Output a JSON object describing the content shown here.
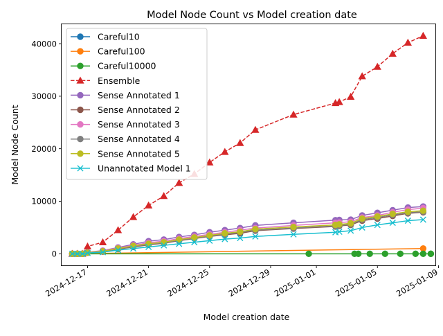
{
  "chart_data": {
    "type": "line",
    "title": "Model Node Count vs Model creation date",
    "xlabel": "Model creation date",
    "ylabel": "Model Node Count",
    "xlim": [
      "2024-12-15T07:12",
      "2025-01-08T19:12"
    ],
    "ylim": [
      -2200,
      43700
    ],
    "x_ticks": [
      "2024-12-17",
      "2024-12-21",
      "2024-12-25",
      "2024-12-29",
      "2025-01-01",
      "2025-01-05",
      "2025-01-09"
    ],
    "y_ticks": [
      0,
      10000,
      20000,
      30000,
      40000
    ],
    "legend_position": "top-left",
    "grid": false,
    "series": [
      {
        "name": "Careful10",
        "color": "#1f77b4",
        "marker": "circle",
        "dash": "solid",
        "points": [
          [
            "2024-12-16T00:00",
            0
          ]
        ]
      },
      {
        "name": "Careful100",
        "color": "#ff7f0e",
        "marker": "circle",
        "dash": "solid",
        "points": [
          [
            "2024-12-16T00:00",
            0
          ],
          [
            "2025-01-08T00:00",
            1000
          ]
        ]
      },
      {
        "name": "Careful10000",
        "color": "#2ca02c",
        "marker": "circle",
        "dash": "solid",
        "points": [
          [
            "2024-12-16T00:00",
            0
          ],
          [
            "2024-12-16T08:00",
            0
          ],
          [
            "2024-12-16T16:00",
            0
          ],
          [
            "2024-12-31T12:00",
            0
          ],
          [
            "2025-01-03T12:00",
            0
          ],
          [
            "2025-01-03T18:00",
            0
          ],
          [
            "2025-01-04T12:00",
            0
          ],
          [
            "2025-01-05T12:00",
            0
          ],
          [
            "2025-01-06T12:00",
            0
          ],
          [
            "2025-01-07T12:00",
            0
          ],
          [
            "2025-01-08T12:00",
            0
          ],
          [
            "2025-01-08T00:00",
            0
          ],
          [
            "2025-01-08T12:00",
            0
          ]
        ]
      },
      {
        "name": "Ensemble",
        "color": "#d62728",
        "marker": "triangle",
        "dash": "dashed",
        "points": [
          [
            "2024-12-16T00:00",
            0
          ],
          [
            "2024-12-16T08:00",
            0
          ],
          [
            "2024-12-16T16:00",
            0
          ],
          [
            "2024-12-17T00:00",
            1400
          ],
          [
            "2024-12-18T00:00",
            2200
          ],
          [
            "2024-12-19T00:00",
            4500
          ],
          [
            "2024-12-20T00:00",
            7000
          ],
          [
            "2024-12-21T00:00",
            9200
          ],
          [
            "2024-12-22T00:00",
            11000
          ],
          [
            "2024-12-23T00:00",
            13500
          ],
          [
            "2024-12-24T00:00",
            15200
          ],
          [
            "2024-12-25T00:00",
            17400
          ],
          [
            "2024-12-26T00:00",
            19400
          ],
          [
            "2024-12-27T00:00",
            21100
          ],
          [
            "2024-12-28T00:00",
            23600
          ],
          [
            "2024-12-30T12:00",
            26500
          ],
          [
            "2025-01-02T06:00",
            28700
          ],
          [
            "2025-01-02T12:00",
            28900
          ],
          [
            "2025-01-03T06:00",
            29900
          ],
          [
            "2025-01-04T00:00",
            33800
          ],
          [
            "2025-01-05T00:00",
            35600
          ],
          [
            "2025-01-06T00:00",
            38100
          ],
          [
            "2025-01-07T00:00",
            40200
          ],
          [
            "2025-01-08T00:00",
            41500
          ]
        ]
      },
      {
        "name": "Sense Annotated 1",
        "color": "#9467bd",
        "marker": "circle",
        "dash": "solid",
        "points": [
          [
            "2024-12-16T00:00",
            0
          ],
          [
            "2024-12-16T08:00",
            0
          ],
          [
            "2024-12-16T16:00",
            0
          ],
          [
            "2024-12-17T00:00",
            300
          ],
          [
            "2024-12-18T00:00",
            600
          ],
          [
            "2024-12-19T00:00",
            1200
          ],
          [
            "2024-12-20T00:00",
            1800
          ],
          [
            "2024-12-21T00:00",
            2400
          ],
          [
            "2024-12-22T00:00",
            2700
          ],
          [
            "2024-12-23T00:00",
            3200
          ],
          [
            "2024-12-24T00:00",
            3600
          ],
          [
            "2024-12-25T00:00",
            4100
          ],
          [
            "2024-12-26T00:00",
            4500
          ],
          [
            "2024-12-27T00:00",
            4900
          ],
          [
            "2024-12-28T00:00",
            5400
          ],
          [
            "2024-12-30T12:00",
            5900
          ],
          [
            "2025-01-02T06:00",
            6400
          ],
          [
            "2025-01-02T12:00",
            6450
          ],
          [
            "2025-01-03T06:00",
            6500
          ],
          [
            "2025-01-04T00:00",
            7300
          ],
          [
            "2025-01-05T00:00",
            7800
          ],
          [
            "2025-01-06T00:00",
            8300
          ],
          [
            "2025-01-07T00:00",
            8800
          ],
          [
            "2025-01-08T00:00",
            9000
          ]
        ]
      },
      {
        "name": "Sense Annotated 2",
        "color": "#8c564b",
        "marker": "circle",
        "dash": "solid",
        "points": [
          [
            "2024-12-16T00:00",
            0
          ],
          [
            "2024-12-16T08:00",
            0
          ],
          [
            "2024-12-16T16:00",
            0
          ],
          [
            "2024-12-17T00:00",
            200
          ],
          [
            "2024-12-18T00:00",
            400
          ],
          [
            "2024-12-19T00:00",
            900
          ],
          [
            "2024-12-20T00:00",
            1300
          ],
          [
            "2024-12-21T00:00",
            1700
          ],
          [
            "2024-12-22T00:00",
            2000
          ],
          [
            "2024-12-23T00:00",
            2500
          ],
          [
            "2024-12-24T00:00",
            2900
          ],
          [
            "2024-12-25T00:00",
            3300
          ],
          [
            "2024-12-26T00:00",
            3600
          ],
          [
            "2024-12-27T00:00",
            3900
          ],
          [
            "2024-12-28T00:00",
            4400
          ],
          [
            "2024-12-30T12:00",
            4800
          ],
          [
            "2025-01-02T06:00",
            5200
          ],
          [
            "2025-01-02T12:00",
            5300
          ],
          [
            "2025-01-03T06:00",
            5500
          ],
          [
            "2025-01-04T00:00",
            6300
          ],
          [
            "2025-01-05T00:00",
            6700
          ],
          [
            "2025-01-06T00:00",
            7200
          ],
          [
            "2025-01-07T00:00",
            7700
          ],
          [
            "2025-01-08T00:00",
            7900
          ]
        ]
      },
      {
        "name": "Sense Annotated 3",
        "color": "#e377c2",
        "marker": "circle",
        "dash": "solid",
        "points": [
          [
            "2024-12-16T00:00",
            0
          ],
          [
            "2024-12-16T08:00",
            0
          ],
          [
            "2024-12-16T16:00",
            0
          ],
          [
            "2024-12-17T00:00",
            250
          ],
          [
            "2024-12-18T00:00",
            550
          ],
          [
            "2024-12-19T00:00",
            1100
          ],
          [
            "2024-12-20T00:00",
            1600
          ],
          [
            "2024-12-21T00:00",
            2100
          ],
          [
            "2024-12-22T00:00",
            2400
          ],
          [
            "2024-12-23T00:00",
            2900
          ],
          [
            "2024-12-24T00:00",
            3300
          ],
          [
            "2024-12-25T00:00",
            3700
          ],
          [
            "2024-12-26T00:00",
            4100
          ],
          [
            "2024-12-27T00:00",
            4500
          ],
          [
            "2024-12-28T00:00",
            4900
          ],
          [
            "2024-12-30T12:00",
            5400
          ],
          [
            "2025-01-02T06:00",
            5900
          ],
          [
            "2025-01-02T12:00",
            5950
          ],
          [
            "2025-01-03T06:00",
            6100
          ],
          [
            "2025-01-04T00:00",
            6900
          ],
          [
            "2025-01-05T00:00",
            7300
          ],
          [
            "2025-01-06T00:00",
            7900
          ],
          [
            "2025-01-07T00:00",
            8400
          ],
          [
            "2025-01-08T00:00",
            8700
          ]
        ]
      },
      {
        "name": "Sense Annotated 4",
        "color": "#7f7f7f",
        "marker": "circle",
        "dash": "solid",
        "points": [
          [
            "2024-12-16T00:00",
            0
          ],
          [
            "2024-12-16T08:00",
            0
          ],
          [
            "2024-12-16T16:00",
            0
          ],
          [
            "2024-12-17T00:00",
            200
          ],
          [
            "2024-12-18T00:00",
            450
          ],
          [
            "2024-12-19T00:00",
            950
          ],
          [
            "2024-12-20T00:00",
            1400
          ],
          [
            "2024-12-21T00:00",
            1800
          ],
          [
            "2024-12-22T00:00",
            2100
          ],
          [
            "2024-12-23T00:00",
            2600
          ],
          [
            "2024-12-24T00:00",
            3000
          ],
          [
            "2024-12-25T00:00",
            3400
          ],
          [
            "2024-12-26T00:00",
            3700
          ],
          [
            "2024-12-27T00:00",
            4100
          ],
          [
            "2024-12-28T00:00",
            4500
          ],
          [
            "2024-12-30T12:00",
            4900
          ],
          [
            "2025-01-02T06:00",
            5300
          ],
          [
            "2025-01-02T12:00",
            5400
          ],
          [
            "2025-01-03T06:00",
            5600
          ],
          [
            "2025-01-04T00:00",
            6500
          ],
          [
            "2025-01-05T00:00",
            6900
          ],
          [
            "2025-01-06T00:00",
            7400
          ],
          [
            "2025-01-07T00:00",
            7800
          ],
          [
            "2025-01-08T00:00",
            8000
          ]
        ]
      },
      {
        "name": "Sense Annotated 5",
        "color": "#bcbd22",
        "marker": "circle",
        "dash": "solid",
        "points": [
          [
            "2024-12-16T00:00",
            0
          ],
          [
            "2024-12-16T08:00",
            0
          ],
          [
            "2024-12-16T16:00",
            0
          ],
          [
            "2024-12-17T00:00",
            220
          ],
          [
            "2024-12-18T00:00",
            480
          ],
          [
            "2024-12-19T00:00",
            1000
          ],
          [
            "2024-12-20T00:00",
            1500
          ],
          [
            "2024-12-21T00:00",
            1900
          ],
          [
            "2024-12-22T00:00",
            2200
          ],
          [
            "2024-12-23T00:00",
            2700
          ],
          [
            "2024-12-24T00:00",
            3100
          ],
          [
            "2024-12-25T00:00",
            3500
          ],
          [
            "2024-12-26T00:00",
            3900
          ],
          [
            "2024-12-27T00:00",
            4200
          ],
          [
            "2024-12-28T00:00",
            4700
          ],
          [
            "2024-12-30T12:00",
            5100
          ],
          [
            "2025-01-02T06:00",
            5500
          ],
          [
            "2025-01-02T12:00",
            5600
          ],
          [
            "2025-01-03T06:00",
            5800
          ],
          [
            "2025-01-04T00:00",
            6700
          ],
          [
            "2025-01-05T00:00",
            7100
          ],
          [
            "2025-01-06T00:00",
            7600
          ],
          [
            "2025-01-07T00:00",
            8000
          ],
          [
            "2025-01-08T00:00",
            8200
          ]
        ]
      },
      {
        "name": "Unannotated Model 1",
        "color": "#17becf",
        "marker": "x",
        "dash": "solid",
        "points": [
          [
            "2024-12-16T00:00",
            0
          ],
          [
            "2024-12-16T08:00",
            0
          ],
          [
            "2024-12-16T16:00",
            0
          ],
          [
            "2024-12-17T00:00",
            150
          ],
          [
            "2024-12-18T00:00",
            300
          ],
          [
            "2024-12-19T00:00",
            700
          ],
          [
            "2024-12-20T00:00",
            1000
          ],
          [
            "2024-12-21T00:00",
            1300
          ],
          [
            "2024-12-22T00:00",
            1600
          ],
          [
            "2024-12-23T00:00",
            1900
          ],
          [
            "2024-12-24T00:00",
            2200
          ],
          [
            "2024-12-25T00:00",
            2500
          ],
          [
            "2024-12-26T00:00",
            2800
          ],
          [
            "2024-12-27T00:00",
            3000
          ],
          [
            "2024-12-28T00:00",
            3300
          ],
          [
            "2024-12-30T12:00",
            3700
          ],
          [
            "2025-01-02T06:00",
            4100
          ],
          [
            "2025-01-02T12:00",
            4200
          ],
          [
            "2025-01-03T06:00",
            4400
          ],
          [
            "2025-01-04T00:00",
            5000
          ],
          [
            "2025-01-05T00:00",
            5500
          ],
          [
            "2025-01-06T00:00",
            5900
          ],
          [
            "2025-01-07T00:00",
            6300
          ],
          [
            "2025-01-08T00:00",
            6500
          ]
        ]
      }
    ]
  }
}
